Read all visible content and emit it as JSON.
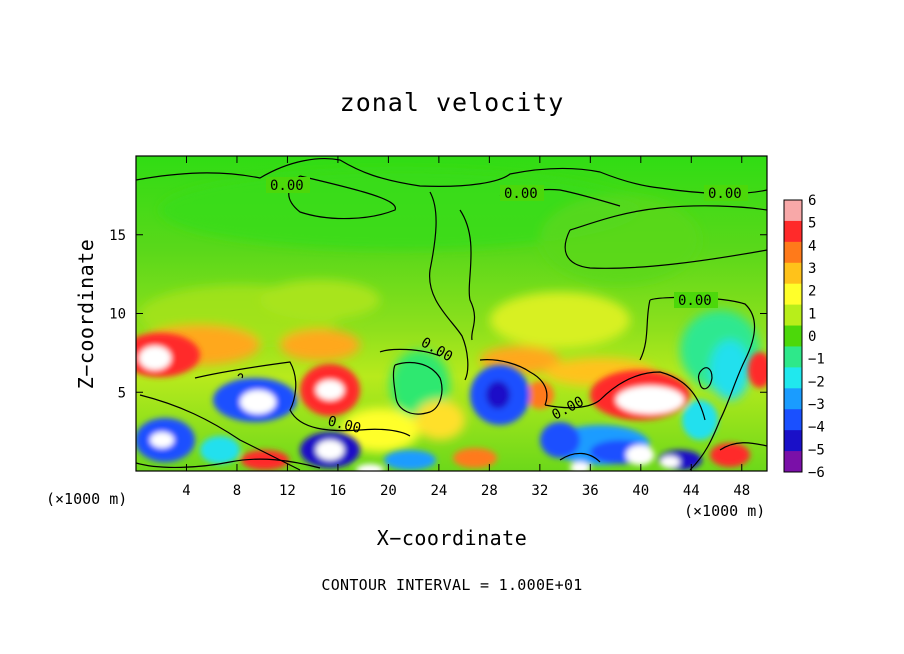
{
  "chart_data": {
    "type": "heatmap",
    "title": "zonal velocity",
    "xlabel": "X−coordinate",
    "ylabel": "Z−coordinate",
    "x_units": "(×1000 m)",
    "y_units": "(×1000 m)",
    "xlim": [
      0,
      50
    ],
    "ylim": [
      0,
      20
    ],
    "x_ticks": [
      "4",
      "8",
      "12",
      "16",
      "20",
      "24",
      "28",
      "32",
      "36",
      "40",
      "44",
      "48"
    ],
    "y_ticks": [
      "5",
      "10",
      "15"
    ],
    "colorbar": {
      "levels": [
        "6",
        "5",
        "4",
        "3",
        "2",
        "1",
        "0",
        "−1",
        "−2",
        "−3",
        "−4",
        "−5",
        "−6"
      ],
      "colors": [
        "#f8a8a8",
        "#ff2a2a",
        "#ff7a1a",
        "#ffc21a",
        "#ffff2a",
        "#b8ee1a",
        "#4cd80a",
        "#2ee88a",
        "#20e8ee",
        "#1a9cff",
        "#1a50ff",
        "#1a10c8",
        "#7a10a8"
      ]
    },
    "contour_labels": [
      "0.00",
      "0.00",
      "0.00",
      "0.00",
      "0.00",
      "0.00",
      "0.00"
    ],
    "footnote": "CONTOUR INTERVAL = 1.000E+01",
    "grid": false,
    "legend": "colorbar-right"
  }
}
